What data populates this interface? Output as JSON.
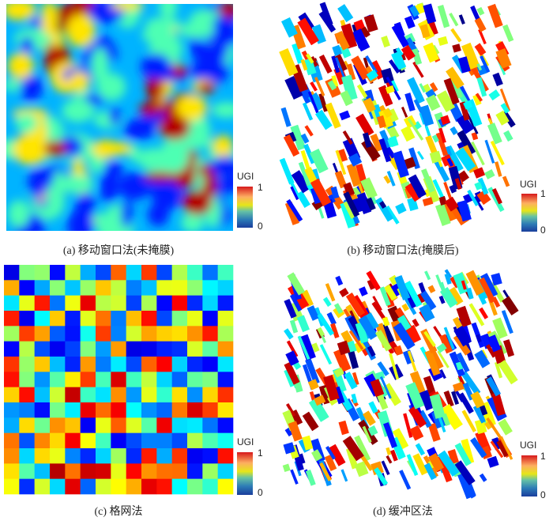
{
  "panels": [
    {
      "caption": "(a) 移动窗口法(未掩膜)",
      "colorbar": {
        "title": "UGI",
        "max": 1,
        "min": 0
      }
    },
    {
      "caption": "(b) 移动窗口法(掩膜后)",
      "colorbar": {
        "title": "UGI",
        "max": 1,
        "min": 0
      }
    },
    {
      "caption": "(c) 格网法",
      "colorbar": {
        "title": "UGI",
        "max": 1,
        "min": 0
      }
    },
    {
      "caption": "(d) 缓冲区法",
      "colorbar": {
        "title": "UGI",
        "max": 1,
        "min": 0
      }
    }
  ]
}
